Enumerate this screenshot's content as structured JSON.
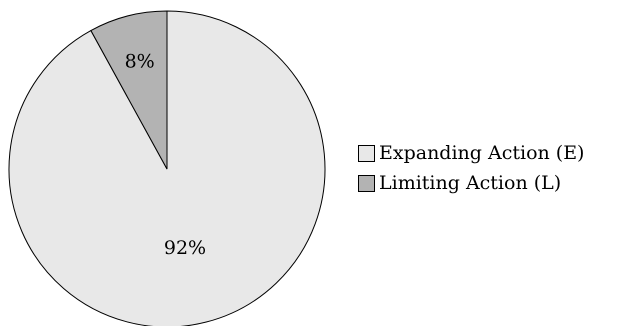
{
  "chart_data": {
    "type": "pie",
    "categories": [
      "Expanding Action (E)",
      "Limiting Action (L)"
    ],
    "values": [
      92,
      8
    ],
    "data_labels": [
      "92%",
      "8%"
    ],
    "colors": [
      "#e8e8e8",
      "#b3b3b3"
    ],
    "legend_position": "right",
    "start_angle": "12 o'clock",
    "direction": "clockwise-from-limiting"
  },
  "legend": {
    "items": [
      {
        "label": "Expanding Action (E)",
        "color": "#e8e8e8"
      },
      {
        "label": "Limiting Action (L)",
        "color": "#b3b3b3"
      }
    ]
  }
}
